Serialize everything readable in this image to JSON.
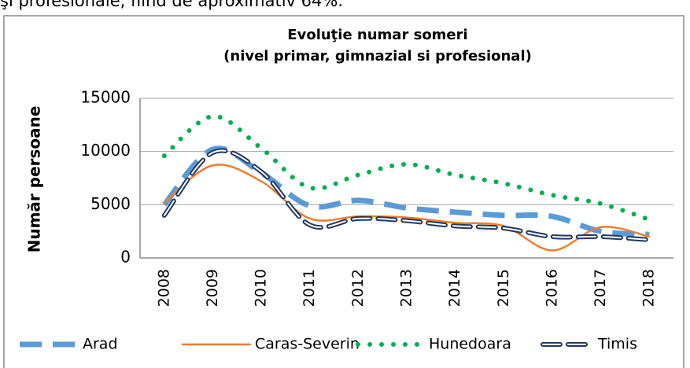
{
  "intro_text": "şi profesionale, fiind de aproximativ 64%.",
  "chart_data": {
    "type": "line",
    "title": "Evoluţie numar someri",
    "subtitle": "(nivel primar, gimnazial si profesional)",
    "y_label": "Număr persoane",
    "categories": [
      "2008",
      "2009",
      "2010",
      "2011",
      "2012",
      "2013",
      "2014",
      "2015",
      "2016",
      "2017",
      "2018"
    ],
    "series": [
      {
        "name": "Arad",
        "color": "#5b9bd5",
        "values": [
          5000,
          10200,
          8000,
          4900,
          5400,
          4700,
          4300,
          4000,
          3900,
          2500,
          2200
        ]
      },
      {
        "name": "Caras-Severin",
        "color": "#ed7d31",
        "values": [
          5200,
          8700,
          7200,
          3700,
          3900,
          3800,
          3300,
          3000,
          700,
          2900,
          2000
        ]
      },
      {
        "name": "Hunedoara",
        "color": "#00b050",
        "values": [
          9600,
          13300,
          10300,
          6600,
          7800,
          8800,
          7800,
          7000,
          5900,
          5100,
          3600
        ]
      },
      {
        "name": "Timis",
        "color": "#1f3864",
        "values": [
          4000,
          9900,
          8100,
          3100,
          3700,
          3500,
          3000,
          2800,
          2000,
          2000,
          1700
        ]
      }
    ],
    "ylim": [
      0,
      15000
    ],
    "yticks": [
      0,
      5000,
      10000,
      15000
    ],
    "grid": true,
    "legend": "bottom"
  }
}
